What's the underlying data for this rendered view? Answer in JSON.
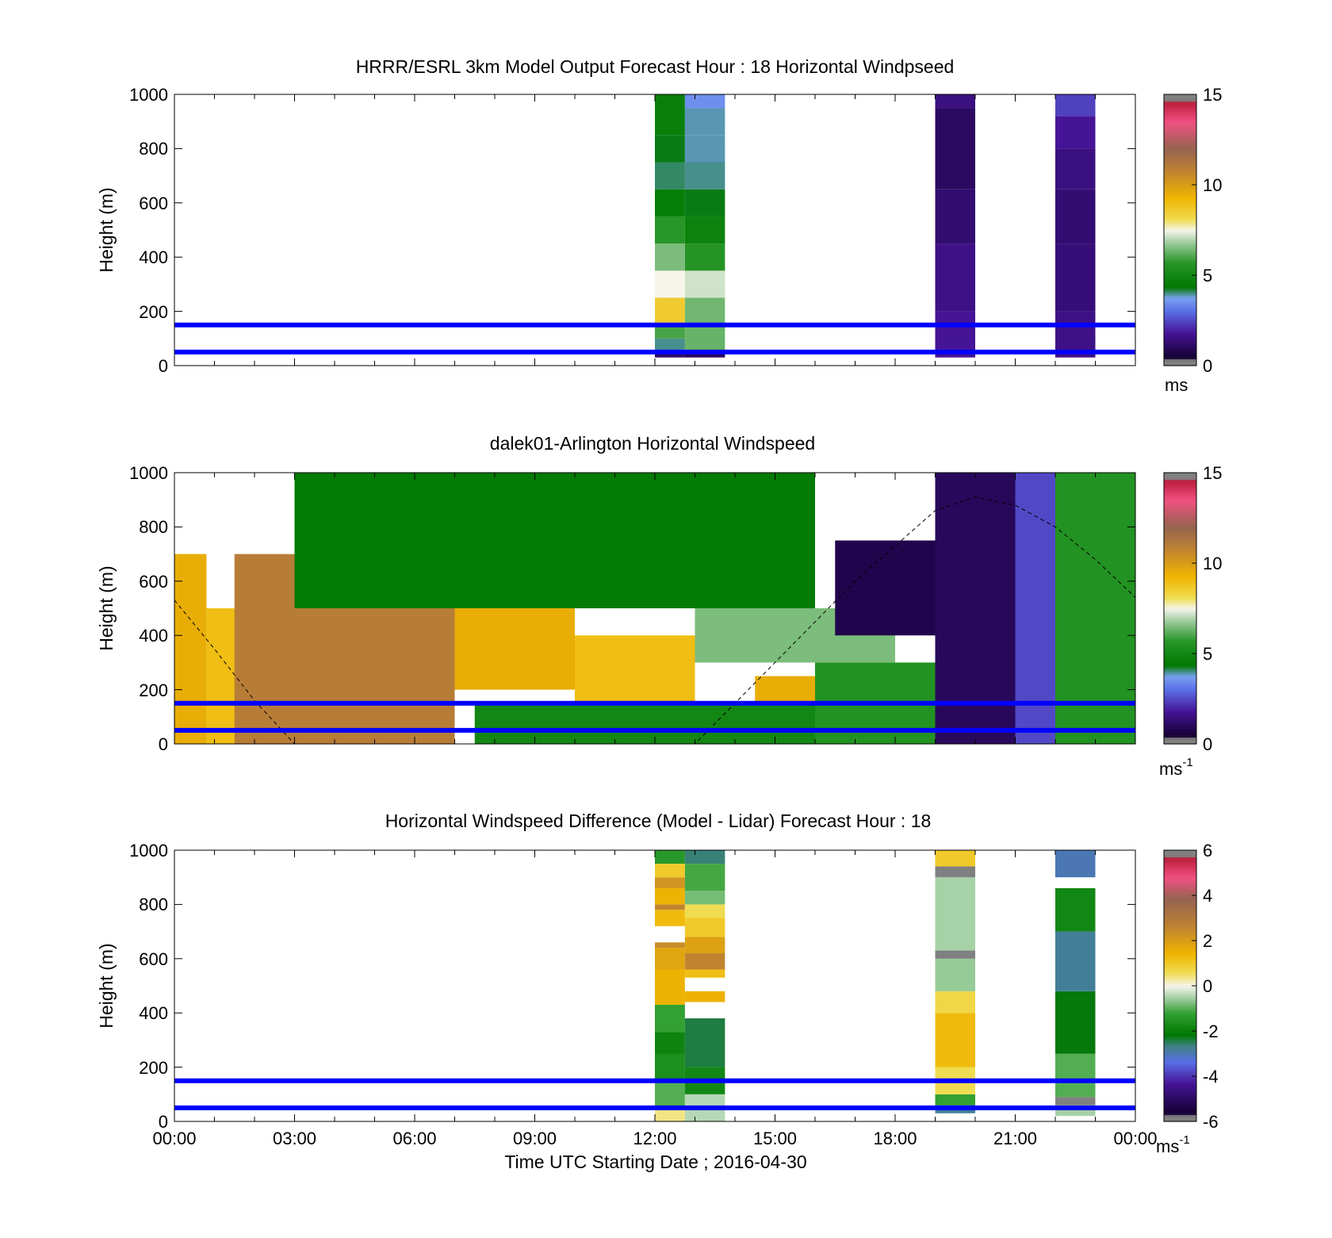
{
  "chart_data": [
    {
      "type": "heatmap",
      "title": "HRRR/ESRL 3km Model Output   Forecast Hour : 18 Horizontal Windpseed",
      "ylabel": "Height (m)",
      "xlabel": "",
      "ylim": [
        0,
        1000
      ],
      "xlim": [
        "00:00",
        "00:00"
      ],
      "yticks": [
        "0",
        "200",
        "400",
        "600",
        "800",
        "1000"
      ],
      "colorbar": {
        "ticks": [
          "0",
          "5",
          "10",
          "15"
        ],
        "range": [
          0,
          15
        ],
        "unit": "ms",
        "unit_sup": ""
      },
      "reference_heights_m": [
        50,
        150
      ],
      "reference_line_color": "#0000ff",
      "columns": [
        {
          "time_h": [
            12.0,
            12.75
          ],
          "profile": [
            [
              30,
              50,
              1.2
            ],
            [
              50,
              100,
              4.0
            ],
            [
              100,
              150,
              6.0
            ],
            [
              150,
              250,
              8.6
            ],
            [
              250,
              350,
              7.5
            ],
            [
              350,
              450,
              6.5
            ],
            [
              450,
              550,
              5.7
            ],
            [
              550,
              650,
              4.6
            ],
            [
              650,
              750,
              4.1
            ],
            [
              750,
              850,
              4.3
            ],
            [
              850,
              1000,
              4.7
            ]
          ]
        },
        {
          "time_h": [
            12.75,
            13.75
          ],
          "profile": [
            [
              30,
              50,
              1.0
            ],
            [
              50,
              150,
              6.3
            ],
            [
              150,
              250,
              6.4
            ],
            [
              250,
              350,
              7.2
            ],
            [
              350,
              450,
              5.6
            ],
            [
              450,
              550,
              4.8
            ],
            [
              550,
              650,
              4.3
            ],
            [
              650,
              750,
              4.0
            ],
            [
              750,
              850,
              3.9
            ],
            [
              850,
              950,
              3.9
            ],
            [
              950,
              1000,
              3.5
            ]
          ]
        },
        {
          "time_h": [
            19.0,
            20.0
          ],
          "profile": [
            [
              30,
              200,
              1.8
            ],
            [
              200,
              450,
              1.6
            ],
            [
              450,
              650,
              1.3
            ],
            [
              650,
              950,
              1.1
            ],
            [
              950,
              1000,
              1.5
            ]
          ]
        },
        {
          "time_h": [
            22.0,
            23.0
          ],
          "profile": [
            [
              30,
              200,
              1.6
            ],
            [
              200,
              450,
              1.4
            ],
            [
              450,
              650,
              1.3
            ],
            [
              650,
              800,
              1.5
            ],
            [
              800,
              920,
              1.8
            ],
            [
              920,
              1000,
              2.4
            ]
          ]
        }
      ]
    },
    {
      "type": "heatmap",
      "title": "dalek01-Arlington  Horizontal Windspeed",
      "ylabel": "Height (m)",
      "xlabel": "",
      "ylim": [
        0,
        1000
      ],
      "xlim": [
        "00:00",
        "00:00"
      ],
      "yticks": [
        "0",
        "200",
        "400",
        "600",
        "800",
        "1000"
      ],
      "colorbar": {
        "ticks": [
          "0",
          "5",
          "10",
          "15"
        ],
        "range": [
          0,
          15
        ],
        "unit": "ms",
        "unit_sup": "-1"
      },
      "reference_heights_m": [
        50,
        150
      ],
      "reference_line_color": "#0000ff",
      "regions": [
        {
          "t": [
            0,
            0.8
          ],
          "z": [
            0,
            700
          ],
          "v": 9.5
        },
        {
          "t": [
            0.8,
            2.0
          ],
          "z": [
            0,
            500
          ],
          "v": 9.0
        },
        {
          "t": [
            2.0,
            3.2
          ],
          "z": [
            80,
            600
          ],
          "v": 13.5
        },
        {
          "t": [
            1.5,
            4.0
          ],
          "z": [
            0,
            700
          ],
          "v": 11.0
        },
        {
          "t": [
            4.0,
            7.0
          ],
          "z": [
            0,
            550
          ],
          "v": 11.0
        },
        {
          "t": [
            7.0,
            10.0
          ],
          "z": [
            200,
            500
          ],
          "v": 9.5
        },
        {
          "t": [
            10.0,
            13.0
          ],
          "z": [
            150,
            400
          ],
          "v": 9.0
        },
        {
          "t": [
            14.5,
            16.0
          ],
          "z": [
            50,
            250
          ],
          "v": 9.5
        },
        {
          "t": [
            7.5,
            17.0
          ],
          "z": [
            0,
            150
          ],
          "v": 5.0
        },
        {
          "t": [
            3.0,
            16.0
          ],
          "z": [
            500,
            1000
          ],
          "v": 4.5
        },
        {
          "t": [
            13.0,
            18.0
          ],
          "z": [
            300,
            500
          ],
          "v": 6.5
        },
        {
          "t": [
            16.0,
            19.0
          ],
          "z": [
            0,
            300
          ],
          "v": 5.5
        },
        {
          "t": [
            16.5,
            19.0
          ],
          "z": [
            400,
            750
          ],
          "v": 0.8
        },
        {
          "t": [
            19.0,
            21.0
          ],
          "z": [
            0,
            1000
          ],
          "v": 1.0
        },
        {
          "t": [
            21.0,
            22.0
          ],
          "z": [
            0,
            1000
          ],
          "v": 2.5
        },
        {
          "t": [
            22.0,
            24.0
          ],
          "z": [
            0,
            1000
          ],
          "v": 5.5
        }
      ],
      "dashed_curve": [
        [
          0.0,
          530
        ],
        [
          1.0,
          350
        ],
        [
          2.0,
          160
        ],
        [
          3.0,
          0
        ],
        [
          13.0,
          0
        ],
        [
          15.0,
          300
        ],
        [
          17.0,
          600
        ],
        [
          19.0,
          860
        ],
        [
          20.0,
          910
        ],
        [
          21.0,
          880
        ],
        [
          22.0,
          800
        ],
        [
          23.0,
          680
        ],
        [
          24.0,
          540
        ]
      ]
    },
    {
      "type": "heatmap",
      "title": "Horizontal Windspeed Difference (Model - Lidar) Forecast Hour : 18",
      "ylabel": "Height (m)",
      "xlabel": "Time UTC  Starting Date ; 2016-04-30",
      "ylim": [
        0,
        1000
      ],
      "xlim": [
        "00:00",
        "00:00"
      ],
      "yticks": [
        "0",
        "200",
        "400",
        "600",
        "800",
        "1000"
      ],
      "xticks": [
        "00:00",
        "03:00",
        "06:00",
        "09:00",
        "12:00",
        "15:00",
        "18:00",
        "21:00",
        "00:00"
      ],
      "colorbar": {
        "ticks": [
          "-6",
          "-4",
          "-2",
          "0",
          "2",
          "4",
          "6"
        ],
        "range": [
          -6,
          6
        ],
        "unit": "ms",
        "unit_sup": "-1"
      },
      "reference_heights_m": [
        50,
        150
      ],
      "reference_line_color": "#0000ff",
      "columns": [
        {
          "time_h": [
            12.0,
            12.75
          ],
          "profile": [
            [
              0,
              50,
              0.4
            ],
            [
              50,
              150,
              -1.0
            ],
            [
              150,
              250,
              -1.6
            ],
            [
              250,
              330,
              -1.9
            ],
            [
              330,
              430,
              -1.2
            ],
            [
              430,
              560,
              1.5
            ],
            [
              560,
              640,
              1.8
            ],
            [
              640,
              660,
              2.4
            ],
            [
              720,
              780,
              1.3
            ],
            [
              780,
              800,
              2.6
            ],
            [
              800,
              860,
              1.5
            ],
            [
              860,
              900,
              2.2
            ],
            [
              900,
              950,
              1.0
            ],
            [
              950,
              1000,
              -1.4
            ]
          ]
        },
        {
          "time_h": [
            12.75,
            13.75
          ],
          "profile": [
            [
              0,
              100,
              -0.4
            ],
            [
              100,
              200,
              -1.8
            ],
            [
              200,
              380,
              -2.4
            ],
            [
              440,
              480,
              1.5
            ],
            [
              530,
              560,
              1.2
            ],
            [
              560,
              620,
              2.6
            ],
            [
              620,
              680,
              1.9
            ],
            [
              680,
              750,
              1.0
            ],
            [
              750,
              800,
              0.6
            ],
            [
              800,
              850,
              -0.8
            ],
            [
              850,
              950,
              -1.1
            ],
            [
              950,
              1000,
              -2.6
            ]
          ]
        },
        {
          "time_h": [
            19.0,
            20.0
          ],
          "profile": [
            [
              30,
              60,
              -2.8
            ],
            [
              60,
              100,
              -1.2
            ],
            [
              100,
              200,
              0.6
            ],
            [
              200,
              400,
              1.3
            ],
            [
              400,
              480,
              0.7
            ],
            [
              480,
              600,
              -0.6
            ],
            [
              600,
              630,
              -5.8
            ],
            [
              630,
              900,
              -0.5
            ],
            [
              900,
              940,
              -5.8
            ],
            [
              940,
              1000,
              1.0
            ]
          ]
        },
        {
          "time_h": [
            22.0,
            23.0
          ],
          "profile": [
            [
              20,
              60,
              -0.5
            ],
            [
              60,
              90,
              -5.8
            ],
            [
              90,
              250,
              -1.0
            ],
            [
              250,
              480,
              -2.2
            ],
            [
              480,
              700,
              -2.8
            ],
            [
              700,
              860,
              -1.8
            ],
            [
              900,
              1000,
              -3.0
            ]
          ]
        }
      ]
    }
  ]
}
